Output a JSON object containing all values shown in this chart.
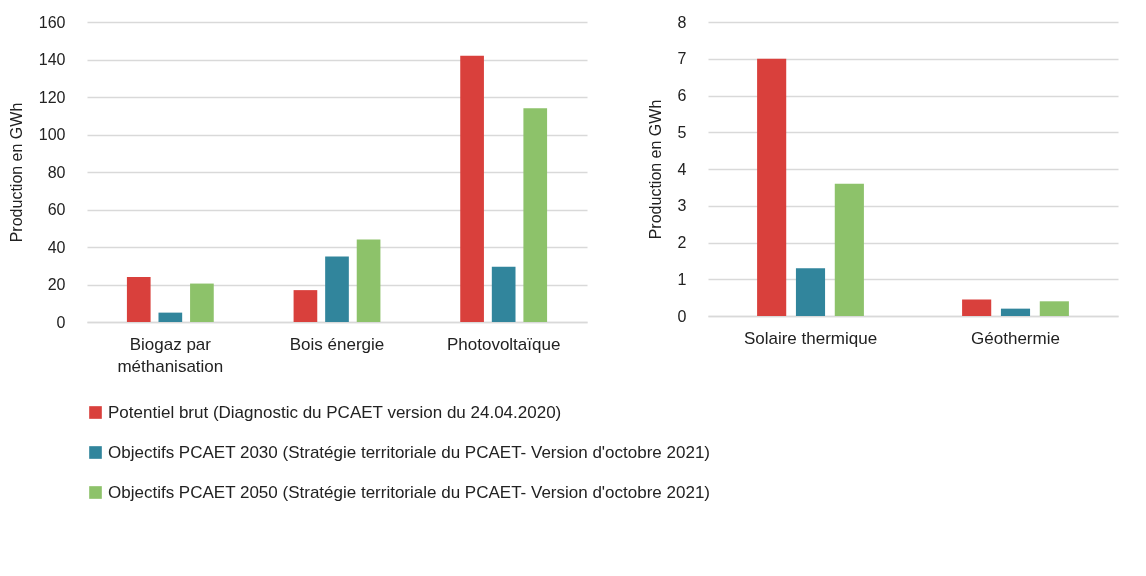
{
  "chart_data": [
    {
      "type": "bar",
      "ylabel": "Production en GWh",
      "categories": [
        "Biogaz par méthanisation",
        "Bois énergie",
        "Photovoltaïque"
      ],
      "series": [
        {
          "name": "Potentiel brut (Diagnostic du PCAET version du 24.04.2020)",
          "color": "#d9403c",
          "values": [
            24,
            17,
            142
          ]
        },
        {
          "name": "Objectifs PCAET 2030 (Stratégie territoriale du PCAET- Version d'octobre 2021)",
          "color": "#31859c",
          "values": [
            5,
            35,
            29.5
          ]
        },
        {
          "name": "Objectifs PCAET 2050 (Stratégie territoriale du PCAET- Version d'octobre 2021)",
          "color": "#8dc26a",
          "values": [
            20.5,
            44,
            114
          ]
        }
      ],
      "ylim": [
        0,
        160
      ],
      "yticks": [
        0,
        20,
        40,
        60,
        80,
        100,
        120,
        140,
        160
      ],
      "grid": "y",
      "legend": "bottom"
    },
    {
      "type": "bar",
      "ylabel": "Production en GWh",
      "categories": [
        "Solaire thermique",
        "Géothermie"
      ],
      "series": [
        {
          "name": "Potentiel brut (Diagnostic du PCAET version du 24.04.2020)",
          "color": "#d9403c",
          "values": [
            7,
            0.45
          ]
        },
        {
          "name": "Objectifs PCAET 2030 (Stratégie territoriale du PCAET- Version d'octobre 2021)",
          "color": "#31859c",
          "values": [
            1.3,
            0.2
          ]
        },
        {
          "name": "Objectifs PCAET 2050 (Stratégie territoriale du PCAET- Version d'octobre 2021)",
          "color": "#8dc26a",
          "values": [
            3.6,
            0.4
          ]
        }
      ],
      "ylim": [
        0,
        8
      ],
      "yticks": [
        0,
        1,
        2,
        3,
        4,
        5,
        6,
        7,
        8
      ],
      "grid": "y",
      "legend": "bottom"
    }
  ]
}
